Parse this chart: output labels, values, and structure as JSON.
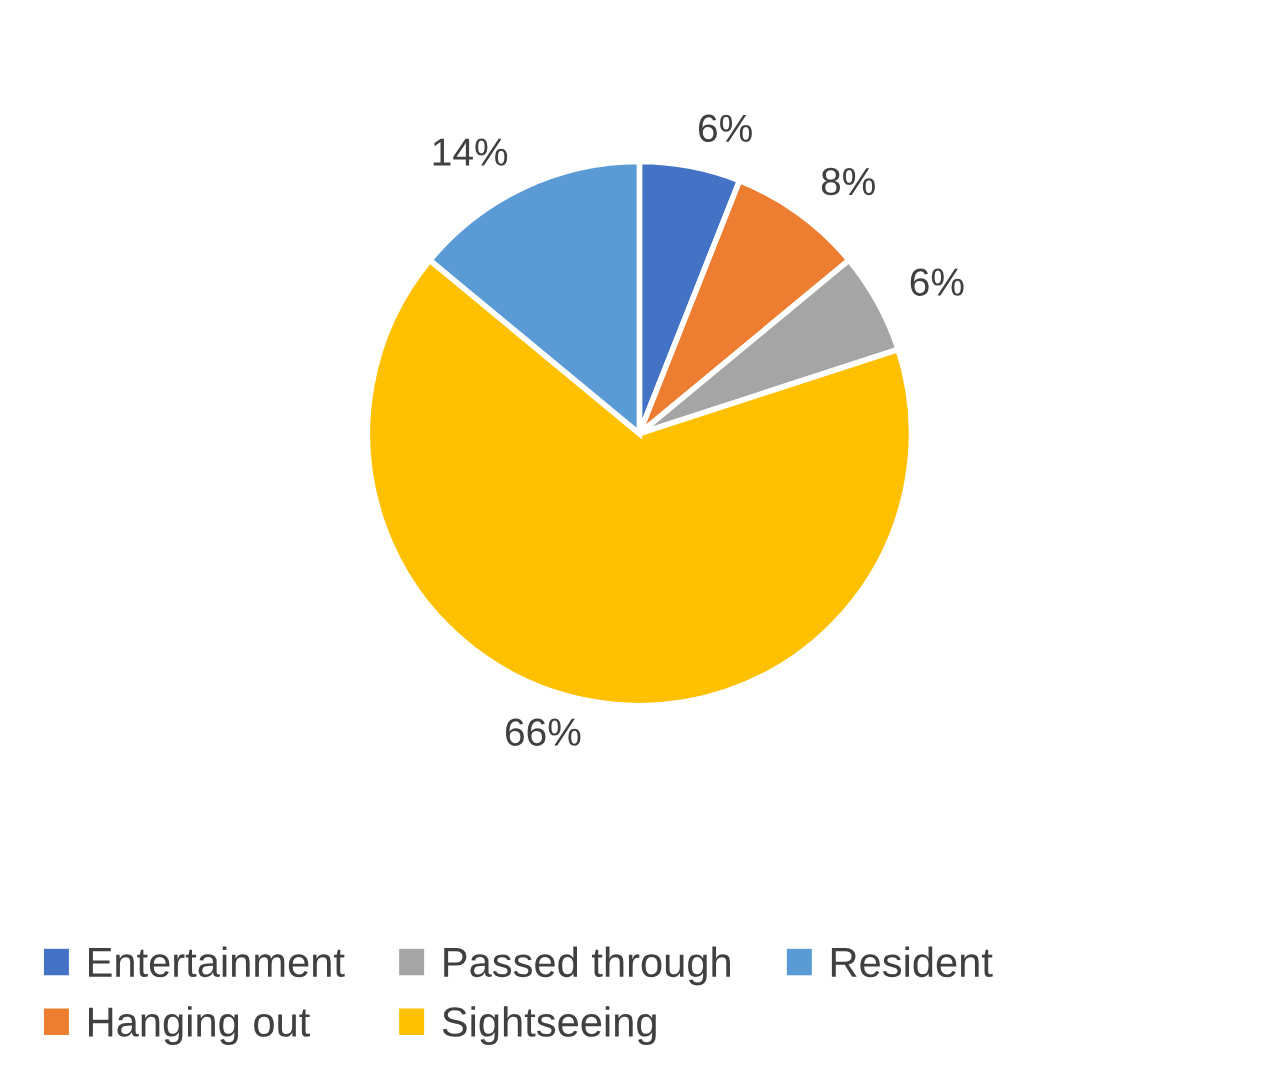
{
  "chart_data": {
    "type": "pie",
    "categories": [
      "Entertainment",
      "Hanging out",
      "Passed through",
      "Sightseeing",
      "Resident"
    ],
    "values": [
      6,
      8,
      6,
      66,
      14
    ],
    "colors": [
      "#4472c4",
      "#ed7d31",
      "#a5a5a5",
      "#ffc000",
      "#5b9bd5"
    ],
    "value_labels": [
      "6%",
      "8%",
      "6%",
      "66%",
      "14%"
    ],
    "legend": "bottom"
  }
}
